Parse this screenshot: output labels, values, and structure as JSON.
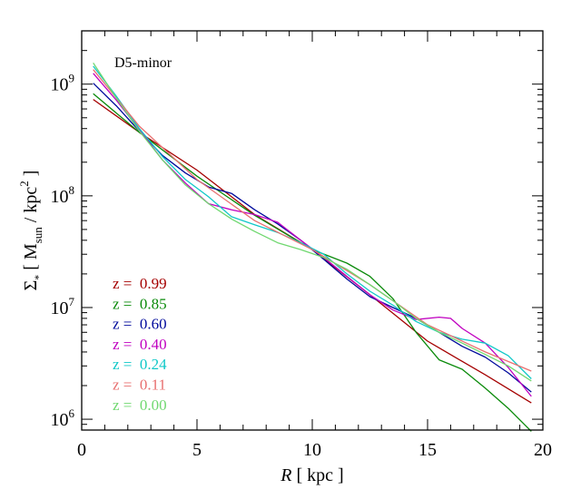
{
  "chart_data": {
    "type": "line",
    "annotation": "D5-minor",
    "xlabel": "R [ kpc ]",
    "ylabel": "Σ* [ Msun / kpc2 ]",
    "xlim": [
      0,
      20
    ],
    "ylim": [
      800000,
      3000000000
    ],
    "yscale": "log",
    "x_ticks": [
      0,
      5,
      10,
      15,
      20
    ],
    "y_ticks": [
      {
        "value": 1000000,
        "base": "10",
        "exp": "6"
      },
      {
        "value": 10000000,
        "base": "10",
        "exp": "7"
      },
      {
        "value": 100000000,
        "base": "10",
        "exp": "8"
      },
      {
        "value": 1000000000,
        "base": "10",
        "exp": "9"
      }
    ],
    "legend_position": "lower-left",
    "series": [
      {
        "name": "z =  0.99",
        "color": "#a50000",
        "x": [
          0.5,
          2.5,
          5,
          7.5,
          10,
          12.5,
          15,
          17.5,
          19.5
        ],
        "y": [
          730000000,
          370000000,
          170000000,
          68000000,
          33000000,
          13000000,
          5000000,
          2500000,
          1400000
        ]
      },
      {
        "name": "z =  0.85",
        "color": "#0a8a0a",
        "x": [
          0.5,
          2.5,
          5,
          7.5,
          10,
          11.5,
          12.5,
          13.5,
          14.5,
          15.5,
          16.5,
          17.5,
          18.5,
          19.5
        ],
        "y": [
          820000000,
          370000000,
          150000000,
          67000000,
          33000000,
          25000000,
          19000000,
          12000000,
          6000000,
          3400000,
          2800000,
          1900000,
          1250000,
          780000
        ]
      },
      {
        "name": "z =  0.60",
        "color": "#000a9c",
        "x": [
          0.5,
          1.5,
          2.5,
          3.5,
          4.5,
          5.5,
          6.5,
          7.5,
          8.5,
          9.5,
          10.5,
          11.5,
          12.5,
          13.5,
          14.5,
          15.5,
          16.5,
          17.5,
          18.5,
          19.5
        ],
        "y": [
          1020000000,
          640000000,
          380000000,
          230000000,
          160000000,
          120000000,
          105000000,
          75000000,
          56000000,
          40000000,
          27000000,
          18000000,
          12500000,
          10000000,
          8000000,
          6000000,
          4500000,
          3600000,
          2600000,
          1750000
        ]
      },
      {
        "name": "z =  0.40",
        "color": "#c000c0",
        "x": [
          0.5,
          1.5,
          2.5,
          3.5,
          4.5,
          5.5,
          6.5,
          7.5,
          8.5,
          9.5,
          10.5,
          11.5,
          12.5,
          13.5,
          14.5,
          15.5,
          16,
          16.5,
          17.5,
          18.5,
          19.5
        ],
        "y": [
          1250000000,
          720000000,
          390000000,
          210000000,
          130000000,
          85000000,
          75000000,
          68000000,
          58000000,
          40000000,
          28000000,
          19000000,
          13000000,
          9500000,
          7800000,
          8200000,
          8000000,
          6500000,
          4800000,
          2900000,
          1600000
        ]
      },
      {
        "name": "z =  0.24",
        "color": "#10c8c8",
        "x": [
          0.5,
          1.5,
          2.5,
          3.5,
          4.5,
          5.5,
          6.5,
          7.5,
          8.5,
          9.5,
          10.5,
          11.5,
          12.5,
          13.5,
          14.5,
          15.5,
          16.5,
          17.5,
          18.5,
          19.5
        ],
        "y": [
          1450000000,
          780000000,
          400000000,
          225000000,
          140000000,
          98000000,
          65000000,
          55000000,
          47000000,
          38000000,
          30000000,
          20000000,
          14000000,
          10500000,
          7500000,
          6000000,
          5200000,
          4800000,
          3700000,
          2300000
        ]
      },
      {
        "name": "z =  0.11",
        "color": "#e87070",
        "x": [
          0.5,
          2.5,
          5,
          7.5,
          10,
          12.5,
          15,
          17.5,
          19.5
        ],
        "y": [
          1350000000,
          420000000,
          140000000,
          60000000,
          33000000,
          16000000,
          7000000,
          4000000,
          2700000
        ]
      },
      {
        "name": "z =  0.00",
        "color": "#70d870",
        "x": [
          0.5,
          1.5,
          2.5,
          3.5,
          4.5,
          5.5,
          6.5,
          7.5,
          8.5,
          9.5,
          10.5,
          11.5,
          12.5,
          13.5,
          14.5,
          15.5,
          16.5,
          17.5,
          18.5,
          19.5
        ],
        "y": [
          1550000000,
          750000000,
          380000000,
          210000000,
          125000000,
          85000000,
          62000000,
          48000000,
          38000000,
          33000000,
          28000000,
          22000000,
          16000000,
          11500000,
          8000000,
          6000000,
          4800000,
          3800000,
          3000000,
          2200000
        ]
      }
    ]
  }
}
